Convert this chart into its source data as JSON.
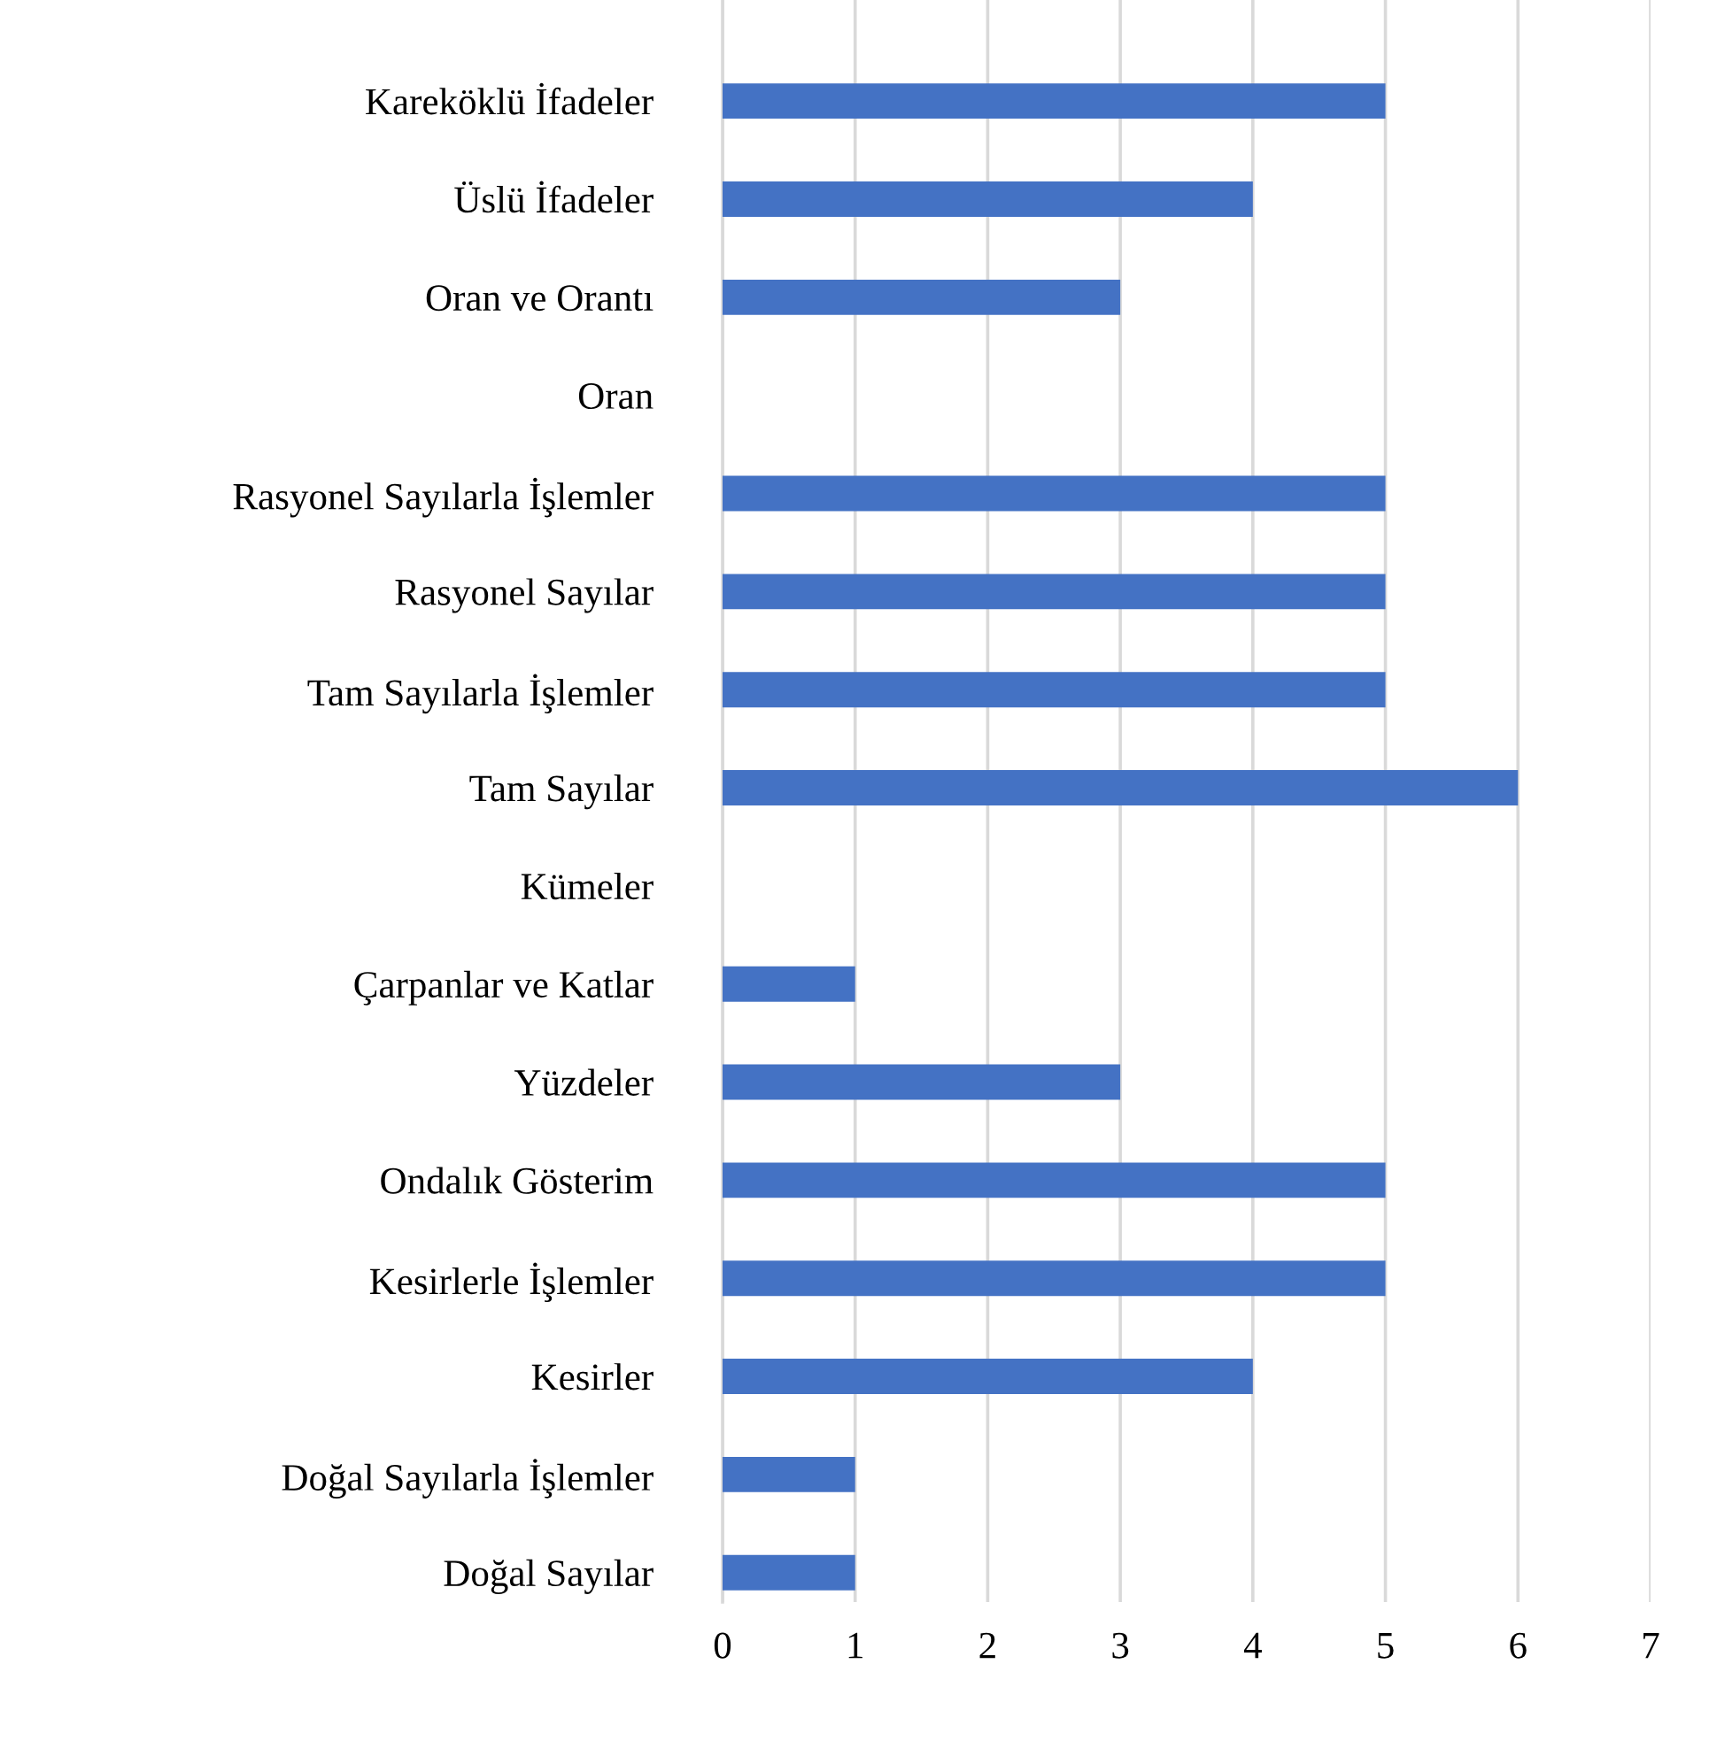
{
  "chart_data": {
    "type": "bar",
    "orientation": "horizontal",
    "categories": [
      "Kareköklü İfadeler",
      "Üslü İfadeler",
      "Oran ve Orantı",
      "Oran",
      "Rasyonel Sayılarla İşlemler",
      "Rasyonel Sayılar",
      "Tam Sayılarla İşlemler",
      "Tam Sayılar",
      "Kümeler",
      "Çarpanlar ve Katlar",
      "Yüzdeler",
      "Ondalık Gösterim",
      "Kesirlerle İşlemler",
      "Kesirler",
      "Doğal Sayılarla İşlemler",
      "Doğal Sayılar"
    ],
    "values": [
      5,
      4,
      3,
      0,
      5,
      5,
      5,
      6,
      0,
      1,
      3,
      5,
      5,
      4,
      1,
      1
    ],
    "color": "#4472c4",
    "xlim": [
      0,
      7
    ],
    "xticks": [
      0,
      1,
      2,
      3,
      4,
      5,
      6,
      7
    ],
    "grid": "x",
    "legend": false
  }
}
